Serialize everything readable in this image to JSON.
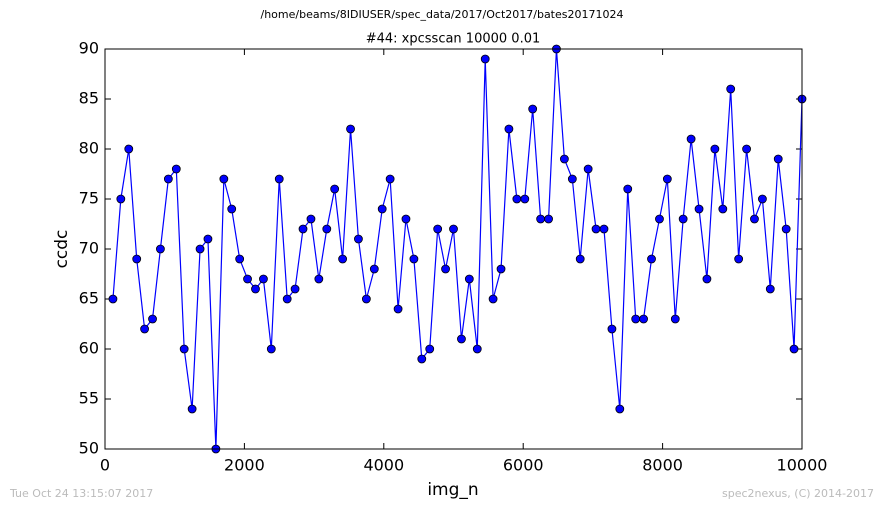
{
  "chart_data": {
    "type": "line",
    "header": "/home/beams/8IDIUSER/spec_data/2017/Oct2017/bates20171024",
    "title": "#44: xpcsscan 10000 0.01",
    "x_label": "img_n",
    "y_label": "ccdc",
    "timestamp": "Tue Oct 24 13:15:07 2017",
    "credit": "spec2nexus, (C) 2014-2017",
    "x": [
      114,
      227,
      341,
      455,
      568,
      682,
      795,
      909,
      1023,
      1136,
      1250,
      1364,
      1477,
      1591,
      1705,
      1818,
      1932,
      2045,
      2159,
      2273,
      2386,
      2500,
      2614,
      2727,
      2841,
      2955,
      3068,
      3182,
      3295,
      3409,
      3523,
      3636,
      3750,
      3864,
      3977,
      4091,
      4205,
      4318,
      4432,
      4545,
      4659,
      4773,
      4886,
      5000,
      5114,
      5227,
      5341,
      5455,
      5568,
      5682,
      5795,
      5909,
      6023,
      6136,
      6250,
      6364,
      6477,
      6591,
      6705,
      6818,
      6932,
      7045,
      7159,
      7273,
      7386,
      7500,
      7614,
      7727,
      7841,
      7955,
      8068,
      8182,
      8295,
      8409,
      8523,
      8636,
      8750,
      8864,
      8977,
      9091,
      9205,
      9318,
      9432,
      9545,
      9659,
      9773,
      9886,
      10000
    ],
    "values": [
      65,
      75,
      80,
      69,
      62,
      63,
      70,
      77,
      78,
      60,
      54,
      70,
      71,
      50,
      77,
      74,
      69,
      67,
      66,
      67,
      60,
      77,
      65,
      66,
      72,
      73,
      67,
      72,
      76,
      69,
      82,
      71,
      65,
      68,
      74,
      77,
      64,
      73,
      69,
      59,
      60,
      72,
      68,
      72,
      61,
      67,
      60,
      89,
      65,
      68,
      82,
      75,
      75,
      84,
      73,
      73,
      90,
      79,
      77,
      69,
      78,
      72,
      72,
      62,
      54,
      76,
      63,
      63,
      69,
      73,
      77,
      63,
      73,
      81,
      74,
      67,
      80,
      74,
      86,
      69,
      80,
      73,
      75,
      66,
      79,
      72,
      60,
      85
    ],
    "color": "#0000ff",
    "xlim": [
      0,
      10000
    ],
    "xticks": [
      0,
      2000,
      4000,
      6000,
      8000,
      10000
    ],
    "ylim": [
      50,
      90
    ],
    "yticks": [
      50,
      55,
      60,
      65,
      70,
      75,
      80,
      85,
      90
    ],
    "grid": false
  }
}
